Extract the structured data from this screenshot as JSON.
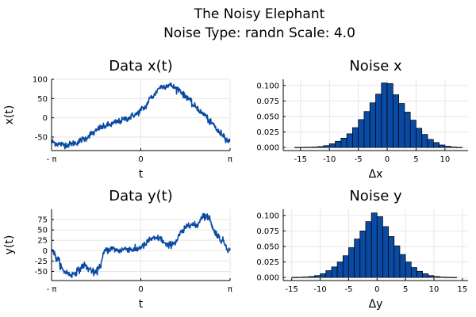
{
  "figure": {
    "title_line1": "The Noisy Elephant",
    "title_line2": "Noise Type: randn Scale: 4.0"
  },
  "colors": {
    "series": "#0a4aa3",
    "bar_stroke": "#000000",
    "axis": "#000000",
    "grid": "#e6e6e6"
  },
  "chart_data": [
    {
      "id": "xt",
      "type": "line",
      "title": "Data x(t)",
      "xlabel": "t",
      "ylabel": "x(t)",
      "xlim": [
        -3.1416,
        3.1416
      ],
      "ylim": [
        -85,
        100
      ],
      "xticks": [
        {
          "v": -3.1416,
          "label": "- π"
        },
        {
          "v": 0,
          "label": "0"
        },
        {
          "v": 3.1416,
          "label": "π"
        }
      ],
      "yticks": [
        {
          "v": -50,
          "label": "-50"
        },
        {
          "v": 0,
          "label": "0"
        },
        {
          "v": 50,
          "label": "50"
        },
        {
          "v": 100,
          "label": "100"
        }
      ],
      "series": [
        {
          "x": [
            -3.14,
            -2.9,
            -2.6,
            -2.3,
            -2.0,
            -1.7,
            -1.4,
            -1.1,
            -0.8,
            -0.5,
            -0.2,
            0.1,
            0.4,
            0.7,
            1.0,
            1.3,
            1.6,
            1.9,
            2.2,
            2.5,
            2.8,
            3.14
          ],
          "y": [
            -62,
            -68,
            -70,
            -65,
            -55,
            -40,
            -25,
            -18,
            -10,
            -2,
            8,
            25,
            55,
            80,
            85,
            75,
            55,
            30,
            10,
            -15,
            -40,
            -62
          ]
        }
      ],
      "noise": 4
    },
    {
      "id": "nx",
      "type": "bar",
      "title": "Noise x",
      "xlabel": "Δx",
      "ylabel": "",
      "xlim": [
        -18,
        14
      ],
      "ylim": [
        -0.005,
        0.11
      ],
      "xticks": [
        {
          "v": -15,
          "label": "-15"
        },
        {
          "v": -10,
          "label": "-10"
        },
        {
          "v": -5,
          "label": "-5"
        },
        {
          "v": 0,
          "label": "0"
        },
        {
          "v": 5,
          "label": "5"
        },
        {
          "v": 10,
          "label": "10"
        }
      ],
      "yticks": [
        {
          "v": 0,
          "label": "0.000"
        },
        {
          "v": 0.025,
          "label": "0.025"
        },
        {
          "v": 0.05,
          "label": "0.050"
        },
        {
          "v": 0.075,
          "label": "0.075"
        },
        {
          "v": 0.1,
          "label": "0.100"
        }
      ],
      "bin_edges": [
        -16,
        -15,
        -14,
        -13,
        -12,
        -11,
        -10,
        -9,
        -8,
        -7,
        -6,
        -5,
        -4,
        -3,
        -2,
        -1,
        0,
        1,
        2,
        3,
        4,
        5,
        6,
        7,
        8,
        9,
        10,
        11,
        12,
        13
      ],
      "values": [
        0.0002,
        0.0003,
        0.0005,
        0.0008,
        0.0015,
        0.003,
        0.006,
        0.01,
        0.015,
        0.022,
        0.032,
        0.045,
        0.058,
        0.072,
        0.086,
        0.104,
        0.103,
        0.085,
        0.071,
        0.057,
        0.044,
        0.031,
        0.021,
        0.013,
        0.008,
        0.004,
        0.002,
        0.0008,
        0.0003
      ]
    },
    {
      "id": "yt",
      "type": "line",
      "title": "Data y(t)",
      "xlabel": "t",
      "ylabel": "y(t)",
      "xlim": [
        -3.1416,
        3.1416
      ],
      "ylim": [
        -72,
        100
      ],
      "xticks": [
        {
          "v": -3.1416,
          "label": "- π"
        },
        {
          "v": 0,
          "label": "0"
        },
        {
          "v": 3.1416,
          "label": "π"
        }
      ],
      "yticks": [
        {
          "v": -50,
          "label": "-50"
        },
        {
          "v": -25,
          "label": "-25"
        },
        {
          "v": 0,
          "label": "0"
        },
        {
          "v": 25,
          "label": "25"
        },
        {
          "v": 50,
          "label": "50"
        },
        {
          "v": 75,
          "label": "75"
        }
      ],
      "series": [
        {
          "x": [
            -3.14,
            -2.95,
            -2.7,
            -2.45,
            -2.2,
            -2.0,
            -1.8,
            -1.6,
            -1.45,
            -1.25,
            -1.0,
            -0.8,
            -0.5,
            -0.2,
            0.1,
            0.35,
            0.65,
            0.95,
            1.2,
            1.45,
            1.7,
            1.95,
            2.2,
            2.4,
            2.6,
            2.85,
            3.14
          ],
          "y": [
            5,
            -20,
            -50,
            -58,
            -48,
            -35,
            -45,
            -55,
            -38,
            0,
            5,
            0,
            5,
            2,
            12,
            28,
            30,
            12,
            20,
            45,
            65,
            60,
            85,
            80,
            45,
            25,
            0
          ]
        }
      ],
      "noise": 4
    },
    {
      "id": "ny",
      "type": "bar",
      "title": "Noise y",
      "xlabel": "Δy",
      "ylabel": "",
      "xlim": [
        -16.5,
        16
      ],
      "ylim": [
        -0.005,
        0.11
      ],
      "xticks": [
        {
          "v": -15,
          "label": "-15"
        },
        {
          "v": -10,
          "label": "-10"
        },
        {
          "v": -5,
          "label": "-5"
        },
        {
          "v": 0,
          "label": "0"
        },
        {
          "v": 5,
          "label": "5"
        },
        {
          "v": 10,
          "label": "10"
        },
        {
          "v": 15,
          "label": "15"
        }
      ],
      "yticks": [
        {
          "v": 0,
          "label": "0.000"
        },
        {
          "v": 0.025,
          "label": "0.025"
        },
        {
          "v": 0.05,
          "label": "0.050"
        },
        {
          "v": 0.075,
          "label": "0.075"
        },
        {
          "v": 0.1,
          "label": "0.100"
        }
      ],
      "bin_edges": [
        -15,
        -14,
        -13,
        -12,
        -11,
        -10,
        -9,
        -8,
        -7,
        -6,
        -5,
        -4,
        -3,
        -2,
        -1,
        0,
        1,
        2,
        3,
        4,
        5,
        6,
        7,
        8,
        9,
        10,
        11,
        12,
        13,
        14
      ],
      "values": [
        0.0002,
        0.0004,
        0.0008,
        0.0015,
        0.003,
        0.006,
        0.011,
        0.017,
        0.025,
        0.035,
        0.048,
        0.062,
        0.075,
        0.09,
        0.104,
        0.098,
        0.082,
        0.066,
        0.051,
        0.037,
        0.025,
        0.016,
        0.01,
        0.006,
        0.003,
        0.0015,
        0.0007,
        0.0003,
        0.0001
      ]
    }
  ]
}
